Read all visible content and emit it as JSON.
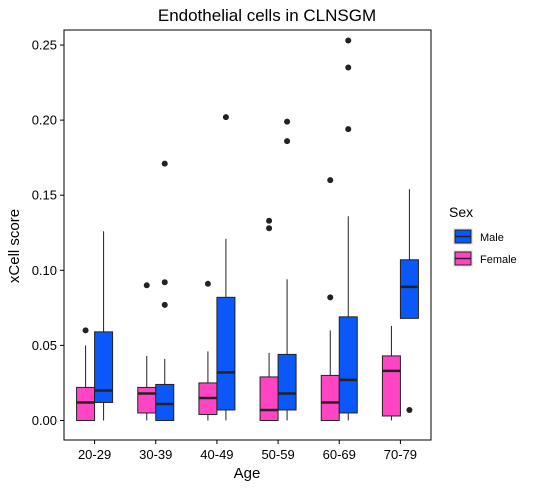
{
  "chart_data": {
    "type": "boxplot",
    "title": "Endothelial cells in CLNSGM",
    "xlabel": "Age",
    "ylabel": "xCell score",
    "ylim": [
      -0.013,
      0.26
    ],
    "yticks": [
      0.0,
      0.05,
      0.1,
      0.15,
      0.2,
      0.25
    ],
    "ytick_labels": [
      "0.00",
      "0.05",
      "0.10",
      "0.15",
      "0.20",
      "0.25"
    ],
    "categories": [
      "20-29",
      "30-39",
      "40-49",
      "50-59",
      "60-69",
      "70-79"
    ],
    "grid": false,
    "legend": {
      "title": "Sex",
      "placement": "right",
      "entries": [
        {
          "name": "Male",
          "color": "#0a57fa"
        },
        {
          "name": "Female",
          "color": "#ff45c4"
        }
      ]
    },
    "series": [
      {
        "name": "Female",
        "color": "#ff45c4",
        "boxes": [
          {
            "lw": 0.0,
            "q1": 0.0,
            "median": 0.012,
            "q3": 0.022,
            "uw": 0.05,
            "outliers": [
              0.06
            ]
          },
          {
            "lw": 0.0,
            "q1": 0.005,
            "median": 0.018,
            "q3": 0.022,
            "uw": 0.043,
            "outliers": [
              0.09
            ]
          },
          {
            "lw": 0.0,
            "q1": 0.004,
            "median": 0.015,
            "q3": 0.025,
            "uw": 0.046,
            "outliers": [
              0.091
            ]
          },
          {
            "lw": 0.0,
            "q1": 0.0,
            "median": 0.007,
            "q3": 0.029,
            "uw": 0.045,
            "outliers": [
              0.128,
              0.133
            ]
          },
          {
            "lw": 0.0,
            "q1": 0.0,
            "median": 0.012,
            "q3": 0.03,
            "uw": 0.06,
            "outliers": [
              0.082,
              0.16
            ]
          },
          {
            "lw": 0.0,
            "q1": 0.003,
            "median": 0.033,
            "q3": 0.043,
            "uw": 0.063,
            "outliers": []
          }
        ]
      },
      {
        "name": "Male",
        "color": "#0a57fa",
        "boxes": [
          {
            "lw": 0.0,
            "q1": 0.012,
            "median": 0.02,
            "q3": 0.059,
            "uw": 0.126,
            "outliers": []
          },
          {
            "lw": 0.0,
            "q1": 0.0,
            "median": 0.011,
            "q3": 0.024,
            "uw": 0.041,
            "outliers": [
              0.077,
              0.092,
              0.171
            ]
          },
          {
            "lw": 0.0,
            "q1": 0.007,
            "median": 0.032,
            "q3": 0.082,
            "uw": 0.121,
            "outliers": [
              0.202
            ]
          },
          {
            "lw": 0.0,
            "q1": 0.007,
            "median": 0.018,
            "q3": 0.044,
            "uw": 0.094,
            "outliers": [
              0.186,
              0.199
            ]
          },
          {
            "lw": 0.0,
            "q1": 0.005,
            "median": 0.027,
            "q3": 0.069,
            "uw": 0.136,
            "outliers": [
              0.194,
              0.235,
              0.253
            ]
          },
          {
            "lw": 0.068,
            "q1": 0.068,
            "median": 0.089,
            "q3": 0.107,
            "uw": 0.154,
            "outliers": [
              0.007
            ]
          }
        ]
      }
    ]
  }
}
